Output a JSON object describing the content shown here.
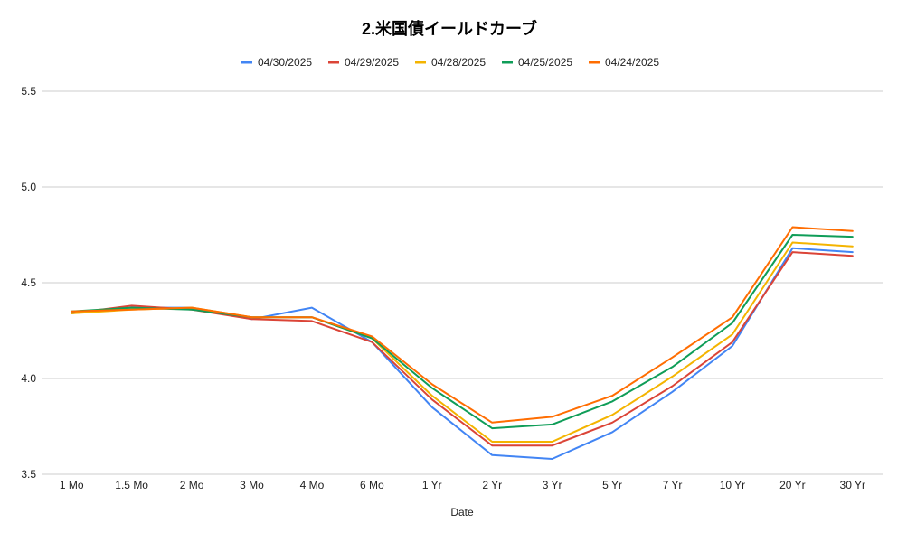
{
  "chart_data": {
    "type": "line",
    "title": "2.米国債イールドカーブ",
    "xlabel": "Date",
    "ylabel": "",
    "ylim": [
      3.5,
      5.5
    ],
    "yticks": [
      3.5,
      4.0,
      4.5,
      5.0,
      5.5
    ],
    "ytick_labels": [
      "3.5",
      "4.0",
      "4.5",
      "5.0",
      "5.5"
    ],
    "grid": true,
    "legend_position": "top",
    "categories": [
      "1 Mo",
      "1.5 Mo",
      "2 Mo",
      "3 Mo",
      "4 Mo",
      "6 Mo",
      "1 Yr",
      "2 Yr",
      "3 Yr",
      "5 Yr",
      "7 Yr",
      "10 Yr",
      "20 Yr",
      "30 Yr"
    ],
    "series": [
      {
        "name": "04/30/2025",
        "color": "#4285f4",
        "values": [
          4.34,
          4.37,
          4.37,
          4.31,
          4.37,
          4.19,
          3.85,
          3.6,
          3.58,
          3.72,
          3.93,
          4.17,
          4.68,
          4.66
        ]
      },
      {
        "name": "04/29/2025",
        "color": "#db4437",
        "values": [
          4.34,
          4.38,
          4.36,
          4.31,
          4.3,
          4.19,
          3.89,
          3.65,
          3.65,
          3.77,
          3.96,
          4.19,
          4.66,
          4.64
        ]
      },
      {
        "name": "04/28/2025",
        "color": "#f4b400",
        "values": [
          4.34,
          4.36,
          4.37,
          4.32,
          4.32,
          4.21,
          3.91,
          3.67,
          3.67,
          3.81,
          4.01,
          4.23,
          4.71,
          4.69
        ]
      },
      {
        "name": "04/25/2025",
        "color": "#0f9d58",
        "values": [
          4.35,
          4.37,
          4.36,
          4.32,
          4.32,
          4.21,
          3.95,
          3.74,
          3.76,
          3.88,
          4.06,
          4.29,
          4.75,
          4.74
        ]
      },
      {
        "name": "04/24/2025",
        "color": "#ff6d01",
        "values": [
          4.35,
          4.36,
          4.37,
          4.32,
          4.32,
          4.22,
          3.97,
          3.77,
          3.8,
          3.91,
          4.11,
          4.32,
          4.79,
          4.77
        ]
      }
    ]
  }
}
